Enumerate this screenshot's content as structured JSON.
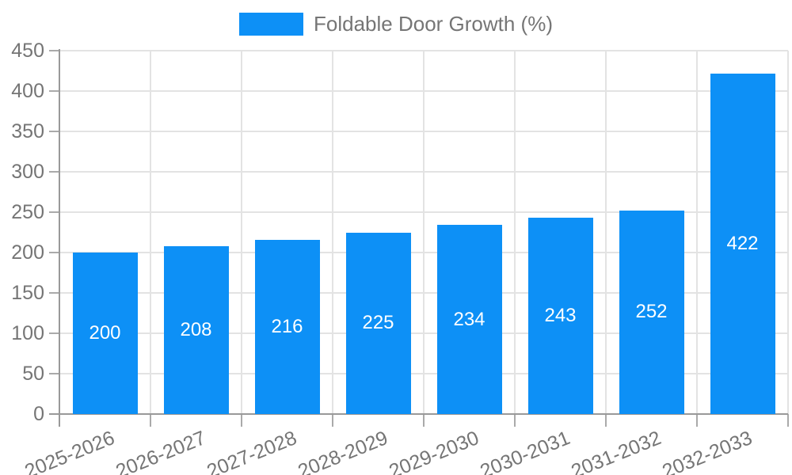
{
  "chart_data": {
    "type": "bar",
    "title": "",
    "legend_label": "Foldable Door Growth (%)",
    "legend_position": "top-center",
    "categories": [
      "2025-2026",
      "2026-2027",
      "2027-2028",
      "2028-2029",
      "2029-2030",
      "2030-2031",
      "2031-2032",
      "2032-2033"
    ],
    "values": [
      200,
      208,
      216,
      225,
      234,
      243,
      252,
      422
    ],
    "xlabel": "",
    "ylabel": "",
    "ylim": [
      0,
      450
    ],
    "yticks": [
      0,
      50,
      100,
      150,
      200,
      250,
      300,
      350,
      400,
      450
    ],
    "grid": true,
    "value_labels": "inside-center",
    "x_label_rotation_deg": -22,
    "colors": {
      "bar": "#0d90f6",
      "value_label": "#ffffff",
      "axis_text": "#757575",
      "legend_text": "#757575",
      "axis_line": "#999999",
      "tick": "#aaaaaa",
      "gridline": "#e3e3e3",
      "background": "#ffffff"
    }
  }
}
